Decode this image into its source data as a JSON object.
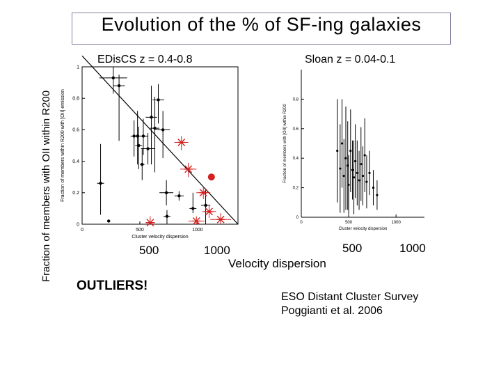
{
  "title": "Evolution of the % of SF-ing galaxies",
  "ylabel": "Fraction of members with OII within R200",
  "xlabel": "Velocity dispersion",
  "outliers_label": "OUTLIERS!",
  "credit": {
    "line1": "ESO Distant Cluster Survey",
    "line2": "Poggianti et al. 2006"
  },
  "chart_data": [
    {
      "type": "scatter",
      "title": "EDisCS z = 0.4-0.8",
      "xlabel": "Cluster velocity dispersion",
      "ylabel": "Fraction of members within R200 with [OII] emission",
      "xlim": [
        0,
        1350
      ],
      "ylim": [
        0,
        1
      ],
      "x_ticks": [
        "0",
        "500",
        "1000"
      ],
      "y_ticks": [
        "0",
        "0.2",
        "0.4",
        "0.6",
        "0.8",
        "1"
      ],
      "below_axis_ticks": [
        "500",
        "1000"
      ],
      "trend_line": {
        "x": [
          0,
          1350
        ],
        "y": [
          1.07,
          0.0
        ]
      },
      "series": [
        {
          "marker": "black-dot",
          "points": [
            {
              "x": 160,
              "y": 0.26,
              "xerr": 30,
              "yerr_lo": 0.2,
              "yerr_hi": 0.25
            },
            {
              "x": 230,
              "y": 0.02
            },
            {
              "x": 270,
              "y": 0.93,
              "xerr": 120,
              "yerr_lo": 0.1,
              "yerr_hi": 0.07
            },
            {
              "x": 320,
              "y": 0.88,
              "xerr": 50,
              "yerr_lo": 0.35,
              "yerr_hi": 0.07
            },
            {
              "x": 450,
              "y": 0.56,
              "xerr": 30,
              "yerr_lo": 0.13,
              "yerr_hi": 0.1
            },
            {
              "x": 480,
              "y": 0.56,
              "xerr": 40,
              "yerr_lo": 0.18,
              "yerr_hi": 0.16
            },
            {
              "x": 490,
              "y": 0.5,
              "xerr": 30,
              "yerr_lo": 0.15,
              "yerr_hi": 0.12
            },
            {
              "x": 520,
              "y": 0.38,
              "xerr": 20,
              "yerr_lo": 0.1,
              "yerr_hi": 0.1
            },
            {
              "x": 530,
              "y": 0.56,
              "xerr": 40,
              "yerr_lo": 0.12,
              "yerr_hi": 0.11
            },
            {
              "x": 570,
              "y": 0.48,
              "xerr": 60,
              "yerr_lo": 0.1,
              "yerr_hi": 0.1
            },
            {
              "x": 600,
              "y": 0.68,
              "xerr": 50,
              "yerr_lo": 0.3,
              "yerr_hi": 0.2
            },
            {
              "x": 630,
              "y": 0.61,
              "xerr": 40,
              "yerr_lo": 0.28,
              "yerr_hi": 0.2
            },
            {
              "x": 660,
              "y": 0.79,
              "xerr": 50,
              "yerr_lo": 0.15,
              "yerr_hi": 0.1
            },
            {
              "x": 700,
              "y": 0.6,
              "xerr": 60,
              "yerr_lo": 0.18,
              "yerr_hi": 0.12
            },
            {
              "x": 730,
              "y": 0.2,
              "xerr": 60,
              "yerr_lo": 0.08,
              "yerr_hi": 0.08
            },
            {
              "x": 735,
              "y": 0.05,
              "xerr": 30,
              "yerr_lo": 0.1,
              "yerr_hi": 0.04
            },
            {
              "x": 840,
              "y": 0.18,
              "xerr": 40,
              "yerr_lo": 0.03,
              "yerr_hi": 0.03
            },
            {
              "x": 960,
              "y": 0.1,
              "xerr": 30,
              "yerr_lo": 0.03,
              "yerr_hi": 0.1
            },
            {
              "x": 1070,
              "y": 0.12,
              "xerr": 40,
              "yerr_lo": 0.12,
              "yerr_hi": 0.1
            }
          ]
        },
        {
          "marker": "red-cross",
          "points": [
            {
              "x": 590,
              "y": 0.01,
              "xerr": 40,
              "yerr_lo": 0.04,
              "yerr_hi": 0.04
            },
            {
              "x": 860,
              "y": 0.52,
              "xerr": 60,
              "yerr_lo": 0.05,
              "yerr_hi": 0.04
            },
            {
              "x": 920,
              "y": 0.35,
              "xerr": 70,
              "yerr_lo": 0.05,
              "yerr_hi": 0.04
            },
            {
              "x": 990,
              "y": 0.02,
              "xerr": 70,
              "yerr_lo": 0.04,
              "yerr_hi": 0.03
            },
            {
              "x": 1050,
              "y": 0.2,
              "xerr": 60,
              "yerr_lo": 0.04,
              "yerr_hi": 0.04
            },
            {
              "x": 1100,
              "y": 0.08,
              "xerr": 60,
              "yerr_lo": 0.04,
              "yerr_hi": 0.04
            },
            {
              "x": 1200,
              "y": 0.03,
              "xerr": 90,
              "yerr_lo": 0.04,
              "yerr_hi": 0.04
            }
          ]
        },
        {
          "marker": "red-big-dot",
          "points": [
            {
              "x": 1120,
              "y": 0.3
            }
          ]
        }
      ]
    },
    {
      "type": "scatter",
      "title": "Sloan   z = 0.04-0.1",
      "xlabel": "Cluster velocity dispersion",
      "ylabel": "Fraction of members with [OII] within R200",
      "xlim": [
        0,
        1300
      ],
      "ylim": [
        0,
        1
      ],
      "x_ticks": [
        "0",
        "500",
        "1000"
      ],
      "y_ticks": [
        "0",
        "0.2",
        "0.4",
        "0.6",
        "0.8"
      ],
      "below_axis_ticks": [
        "500",
        "1000"
      ],
      "series": [
        {
          "marker": "black-dot",
          "points": [
            {
              "x": 380,
              "y": 0.45,
              "yerr": 0.35
            },
            {
              "x": 410,
              "y": 0.33,
              "yerr": 0.3
            },
            {
              "x": 430,
              "y": 0.5,
              "yerr": 0.3
            },
            {
              "x": 450,
              "y": 0.28,
              "yerr": 0.25
            },
            {
              "x": 470,
              "y": 0.4,
              "yerr": 0.35
            },
            {
              "x": 490,
              "y": 0.35,
              "yerr": 0.3
            },
            {
              "x": 500,
              "y": 0.22,
              "yerr": 0.2
            },
            {
              "x": 520,
              "y": 0.45,
              "yerr": 0.28
            },
            {
              "x": 540,
              "y": 0.32,
              "yerr": 0.2
            },
            {
              "x": 555,
              "y": 0.27,
              "yerr": 0.25
            },
            {
              "x": 570,
              "y": 0.38,
              "yerr": 0.25
            },
            {
              "x": 590,
              "y": 0.3,
              "yerr": 0.22
            },
            {
              "x": 610,
              "y": 0.25,
              "yerr": 0.2
            },
            {
              "x": 630,
              "y": 0.36,
              "yerr": 0.25
            },
            {
              "x": 650,
              "y": 0.28,
              "yerr": 0.2
            },
            {
              "x": 670,
              "y": 0.42,
              "yerr": 0.25
            },
            {
              "x": 690,
              "y": 0.24,
              "yerr": 0.18
            },
            {
              "x": 720,
              "y": 0.3,
              "yerr": 0.15
            },
            {
              "x": 760,
              "y": 0.2,
              "yerr": 0.12
            },
            {
              "x": 800,
              "y": 0.15,
              "yerr": 0.1
            }
          ]
        }
      ]
    }
  ]
}
